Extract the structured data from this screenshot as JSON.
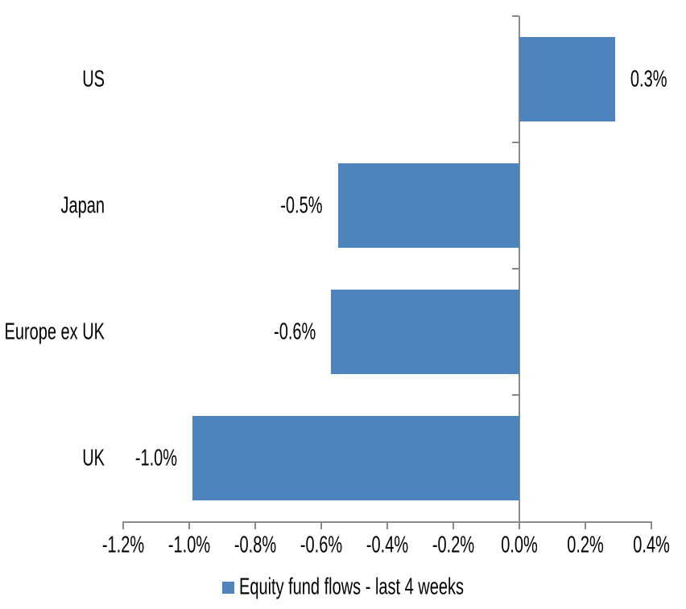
{
  "chart_data": {
    "type": "bar",
    "orientation": "horizontal",
    "title": "",
    "categories": [
      "US",
      "Japan",
      "Europe ex UK",
      "UK"
    ],
    "values": [
      0.29,
      -0.55,
      -0.57,
      -0.99
    ],
    "data_labels": [
      "0.3%",
      "-0.5%",
      "-0.6%",
      "-1.0%"
    ],
    "legend": {
      "label": "Equity fund flows - last 4 weeks",
      "position": "bottom"
    },
    "xlim": [
      -1.2,
      0.4
    ],
    "x_tick_values": [
      -1.2,
      -1.0,
      -0.8,
      -0.6,
      -0.4,
      -0.2,
      0.0,
      0.2,
      0.4
    ],
    "x_tick_labels": [
      "-1.2%",
      "-1.0%",
      "-0.8%",
      "-0.6%",
      "-0.4%",
      "-0.2%",
      "0.0%",
      "0.2%",
      "0.4%"
    ],
    "unit": "%",
    "grid": false,
    "bar_color": "#4E84BD",
    "axis_color": "#8A8A8A",
    "text_color": "#000000"
  }
}
